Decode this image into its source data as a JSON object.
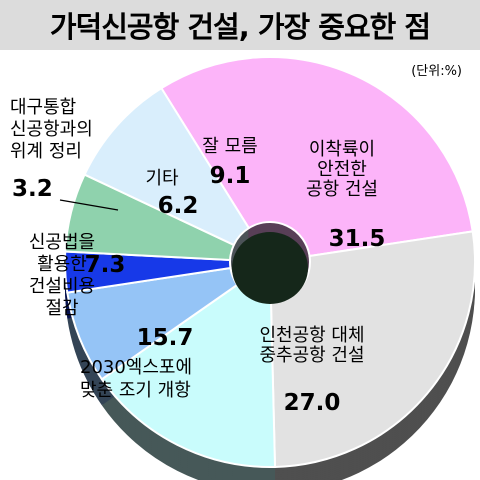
{
  "title": "가덕신공항 건설, 가장 중요한 점",
  "unit": "(단위:%)",
  "chart_data": {
    "type": "pie",
    "title": "가덕신공항 건설, 가장 중요한 점",
    "unit": "%",
    "slices": [
      {
        "label": [
          "이착륙이",
          "안전한",
          "공항 건설"
        ],
        "value": 31.5,
        "value_text": "31.5",
        "color": "#fcb4f9"
      },
      {
        "label": [
          "인천공항 대체",
          "중추공항 건설"
        ],
        "value": 27.0,
        "value_text": "27.0",
        "color": "#e2e2e2"
      },
      {
        "label": [
          "2030엑스포에",
          "맞춘 조기 개항"
        ],
        "value": 15.7,
        "value_text": "15.7",
        "color": "#c9fcfc"
      },
      {
        "label": [
          "신공법을",
          "활용한",
          "건설비용",
          "절감"
        ],
        "value": 7.3,
        "value_text": "7.3",
        "color": "#95c4f6"
      },
      {
        "label": [
          "대구통합",
          "신공항과의",
          "위계 정리"
        ],
        "value": 3.2,
        "value_text": "3.2",
        "color": "#1739e8"
      },
      {
        "label": [
          "기타"
        ],
        "value": 6.2,
        "value_text": "6.2",
        "color": "#8fd2ad"
      },
      {
        "label": [
          "잘 모름"
        ],
        "value": 9.1,
        "value_text": "9.1",
        "color": "#d9eefc"
      }
    ]
  }
}
